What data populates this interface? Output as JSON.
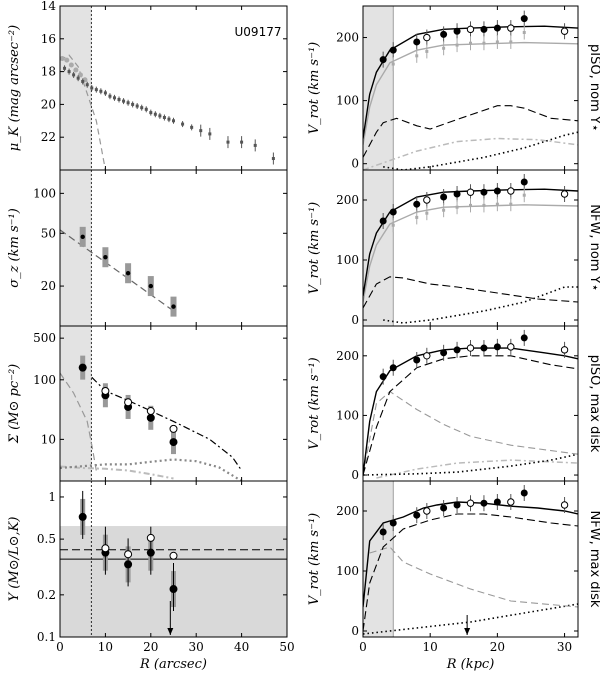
{
  "galaxy": "U09177",
  "chart_data": [
    {
      "id": "muK",
      "type": "scatter",
      "xlim": [
        0,
        50
      ],
      "ylim": [
        24,
        14
      ],
      "yticks": [
        14,
        16,
        18,
        20,
        22
      ],
      "ylabel": "μ_K (mag arcsec⁻²)",
      "shade_x": [
        0,
        7
      ],
      "vline": 6.9,
      "points": [
        [
          1,
          17.8
        ],
        [
          2,
          18.0
        ],
        [
          3,
          18.2
        ],
        [
          4,
          18.4
        ],
        [
          5,
          18.6
        ],
        [
          6,
          18.8
        ],
        [
          7,
          19.0
        ],
        [
          8,
          19.1
        ],
        [
          9,
          19.2
        ],
        [
          10,
          19.3
        ],
        [
          11,
          19.5
        ],
        [
          12,
          19.6
        ],
        [
          13,
          19.7
        ],
        [
          14,
          19.8
        ],
        [
          15,
          19.9
        ],
        [
          16,
          20.0
        ],
        [
          17,
          20.1
        ],
        [
          18,
          20.2
        ],
        [
          19,
          20.3
        ],
        [
          20,
          20.5
        ],
        [
          21,
          20.6
        ],
        [
          22,
          20.7
        ],
        [
          23,
          20.8
        ],
        [
          24,
          20.9
        ],
        [
          25,
          21.0
        ],
        [
          27,
          21.2
        ],
        [
          29,
          21.4
        ],
        [
          31,
          21.6
        ],
        [
          33,
          21.8
        ],
        [
          37,
          22.3
        ],
        [
          40,
          22.3
        ],
        [
          43,
          22.5
        ],
        [
          47,
          23.3
        ]
      ],
      "gray_points": [
        [
          0.5,
          17.2
        ],
        [
          1.5,
          17.3
        ],
        [
          2.5,
          17.6
        ],
        [
          3.5,
          17.9
        ],
        [
          4.5,
          18.2
        ],
        [
          5.5,
          18.5
        ]
      ],
      "dashed_line": [
        [
          0,
          17.3
        ],
        [
          2,
          17.0
        ],
        [
          4,
          17.7
        ],
        [
          8,
          21
        ],
        [
          10,
          24
        ]
      ]
    },
    {
      "id": "sigma",
      "type": "scatter",
      "ylog": true,
      "ylim": [
        10,
        150
      ],
      "yticks": [
        20,
        50,
        100
      ],
      "ylabel": "σ_z (km s⁻¹)",
      "shade_x": [
        0,
        7
      ],
      "vline": 6.9,
      "points": [
        [
          5,
          47
        ],
        [
          10,
          33
        ],
        [
          15,
          25
        ],
        [
          20,
          20
        ],
        [
          25,
          14
        ]
      ],
      "dashed_line": [
        [
          0,
          53
        ],
        [
          25,
          13
        ]
      ]
    },
    {
      "id": "Sigma",
      "type": "scatter",
      "ylog": true,
      "ylim": [
        2,
        800
      ],
      "yticks": [
        10,
        100,
        500
      ],
      "ylabel": "Σ (M⊙ pc⁻²)",
      "shade_x": [
        0,
        7
      ],
      "vline": 6.9,
      "filled": [
        [
          5,
          160
        ],
        [
          10,
          55
        ],
        [
          15,
          35
        ],
        [
          20,
          23
        ],
        [
          25,
          9
        ]
      ],
      "open": [
        [
          10,
          65
        ],
        [
          15,
          42
        ],
        [
          20,
          30
        ],
        [
          25,
          15
        ]
      ],
      "black_dashed": [
        [
          7,
          110
        ],
        [
          10,
          65
        ],
        [
          15,
          45
        ],
        [
          20,
          30
        ],
        [
          25,
          20
        ],
        [
          33,
          10
        ],
        [
          38,
          5
        ],
        [
          40,
          3
        ]
      ],
      "gray_dashed": [
        [
          0,
          130
        ],
        [
          3,
          60
        ],
        [
          6,
          20
        ],
        [
          7,
          8
        ],
        [
          8,
          3
        ]
      ],
      "gray_dashdot": [
        [
          0,
          3.3
        ],
        [
          10,
          3.8
        ],
        [
          15,
          3.8
        ],
        [
          20,
          4.2
        ],
        [
          25,
          4.6
        ],
        [
          30,
          4.3
        ],
        [
          35,
          3.4
        ],
        [
          40,
          2
        ]
      ],
      "light_dashdot": [
        [
          0,
          3.5
        ],
        [
          5,
          3.3
        ],
        [
          10,
          3.2
        ],
        [
          15,
          3
        ],
        [
          20,
          2.6
        ],
        [
          25,
          2.2
        ]
      ]
    },
    {
      "id": "upsilon",
      "type": "scatter",
      "ylog": true,
      "ylim": [
        0.1,
        1.3
      ],
      "yticks": [
        0.1,
        0.2,
        0.5,
        1
      ],
      "ylabel": "Υ (M⊙/L⊙,K)",
      "xlabel": "R (arcsec)",
      "xticks": [
        0,
        10,
        20,
        30,
        40,
        50
      ],
      "shade_y": [
        0.1,
        0.62
      ],
      "hline_solid": 0.36,
      "hline_dashed": 0.42,
      "vline": 6.9,
      "filled": [
        [
          5,
          0.72
        ],
        [
          10,
          0.4
        ],
        [
          15,
          0.33
        ],
        [
          20,
          0.4
        ],
        [
          25,
          0.22
        ]
      ],
      "open": [
        [
          10,
          0.43
        ],
        [
          15,
          0.39
        ],
        [
          20,
          0.51
        ],
        [
          25,
          0.38
        ]
      ],
      "arrow_x": 24.3
    },
    {
      "id": "rc1",
      "side_label": "pISO, nom Υ⋆",
      "ylim": [
        -10,
        250
      ],
      "yticks": [
        0,
        100,
        200
      ],
      "shade_x": [
        0,
        4.5
      ],
      "obs": [
        [
          3,
          165
        ],
        [
          4.5,
          180
        ],
        [
          8,
          193
        ],
        [
          9.5,
          200
        ],
        [
          12,
          205
        ],
        [
          14,
          210
        ],
        [
          16,
          213
        ],
        [
          18,
          213
        ],
        [
          20,
          215
        ],
        [
          22,
          215
        ],
        [
          24,
          230
        ],
        [
          30,
          210
        ]
      ],
      "total": [
        [
          0,
          40
        ],
        [
          1,
          110
        ],
        [
          2,
          145
        ],
        [
          4,
          180
        ],
        [
          8,
          205
        ],
        [
          12,
          213
        ],
        [
          16,
          215
        ],
        [
          22,
          217
        ],
        [
          27,
          218
        ],
        [
          32,
          215
        ]
      ],
      "gas": [
        [
          0,
          0
        ],
        [
          3,
          15
        ],
        [
          8,
          35
        ],
        [
          12,
          70
        ],
        [
          14,
          85
        ],
        [
          22,
          90
        ],
        [
          24,
          85
        ],
        [
          28,
          60
        ],
        [
          32,
          50
        ]
      ],
      "disk_dashed": [
        [
          0,
          10
        ],
        [
          2,
          50
        ],
        [
          3,
          65
        ],
        [
          5,
          72
        ],
        [
          8,
          60
        ],
        [
          10,
          55
        ],
        [
          14,
          70
        ],
        [
          20,
          92
        ],
        [
          22,
          92
        ],
        [
          24,
          88
        ],
        [
          28,
          72
        ],
        [
          32,
          68
        ]
      ],
      "halo_dotted": [
        [
          3,
          -5
        ],
        [
          6,
          -10
        ],
        [
          10,
          -5
        ],
        [
          18,
          10
        ],
        [
          24,
          25
        ],
        [
          30,
          45
        ],
        [
          32,
          50
        ]
      ],
      "light_dashdot": [
        [
          0,
          -10
        ],
        [
          4,
          5
        ],
        [
          8,
          20
        ],
        [
          14,
          35
        ],
        [
          20,
          40
        ],
        [
          26,
          38
        ],
        [
          32,
          30
        ]
      ]
    },
    {
      "id": "rc2",
      "side_label": "NFW, nom Υ⋆",
      "ylim": [
        -10,
        250
      ],
      "yticks": [
        0,
        100,
        200
      ],
      "shade_x": [
        0,
        4.5
      ],
      "total": [
        [
          0,
          40
        ],
        [
          1,
          110
        ],
        [
          2,
          145
        ],
        [
          4,
          180
        ],
        [
          8,
          205
        ],
        [
          12,
          213
        ],
        [
          16,
          215
        ],
        [
          22,
          217
        ],
        [
          27,
          218
        ],
        [
          32,
          215
        ]
      ],
      "gas": [
        [
          0,
          0
        ],
        [
          4,
          30
        ],
        [
          8,
          65
        ],
        [
          12,
          80
        ],
        [
          14,
          85
        ],
        [
          22,
          85
        ],
        [
          28,
          80
        ],
        [
          32,
          75
        ]
      ],
      "disk_dashed": [
        [
          0,
          20
        ],
        [
          2,
          60
        ],
        [
          4,
          72
        ],
        [
          6,
          70
        ],
        [
          10,
          60
        ],
        [
          14,
          55
        ],
        [
          20,
          45
        ],
        [
          26,
          35
        ],
        [
          32,
          30
        ]
      ],
      "halo_dotted": [
        [
          3,
          0
        ],
        [
          6,
          -5
        ],
        [
          10,
          0
        ],
        [
          18,
          15
        ],
        [
          24,
          30
        ],
        [
          30,
          55
        ],
        [
          32,
          55
        ]
      ]
    },
    {
      "id": "rc3",
      "side_label": "pISO, max disk",
      "ylim": [
        -10,
        250
      ],
      "yticks": [
        0,
        100,
        200
      ],
      "total": [
        [
          0,
          0
        ],
        [
          1,
          90
        ],
        [
          2,
          140
        ],
        [
          4,
          175
        ],
        [
          8,
          200
        ],
        [
          12,
          210
        ],
        [
          16,
          213
        ],
        [
          22,
          213
        ],
        [
          27,
          205
        ],
        [
          30,
          200
        ],
        [
          32,
          195
        ]
      ],
      "disk_dashed": [
        [
          0,
          0
        ],
        [
          2,
          80
        ],
        [
          4,
          140
        ],
        [
          8,
          180
        ],
        [
          12,
          195
        ],
        [
          16,
          200
        ],
        [
          22,
          200
        ],
        [
          28,
          185
        ],
        [
          32,
          178
        ]
      ],
      "gas_dashed": [
        [
          0,
          0
        ],
        [
          2,
          120
        ],
        [
          4,
          140
        ],
        [
          8,
          110
        ],
        [
          12,
          85
        ],
        [
          16,
          65
        ],
        [
          22,
          50
        ],
        [
          32,
          35
        ]
      ],
      "halo_dotted": [
        [
          0,
          0
        ],
        [
          8,
          2
        ],
        [
          14,
          5
        ],
        [
          22,
          15
        ],
        [
          28,
          25
        ],
        [
          32,
          35
        ]
      ],
      "light_dashdot": [
        [
          2,
          -5
        ],
        [
          8,
          10
        ],
        [
          14,
          20
        ],
        [
          22,
          25
        ],
        [
          32,
          20
        ]
      ]
    },
    {
      "id": "rc4",
      "side_label": "NFW, max disk",
      "ylim": [
        -10,
        250
      ],
      "yticks": [
        0,
        100,
        200
      ],
      "shade_x": [
        0,
        4.5
      ],
      "xlabel": "R (kpc)",
      "xticks": [
        0,
        10,
        20,
        30
      ],
      "arrow_x": 15.5,
      "total": [
        [
          0,
          40
        ],
        [
          1,
          150
        ],
        [
          3,
          180
        ],
        [
          6,
          190
        ],
        [
          9,
          205
        ],
        [
          11,
          210
        ],
        [
          14,
          215
        ],
        [
          18,
          213
        ],
        [
          22,
          208
        ],
        [
          26,
          205
        ],
        [
          30,
          200
        ],
        [
          32,
          195
        ]
      ],
      "disk_dashed": [
        [
          0,
          0
        ],
        [
          1,
          80
        ],
        [
          3,
          140
        ],
        [
          6,
          170
        ],
        [
          10,
          185
        ],
        [
          14,
          195
        ],
        [
          18,
          195
        ],
        [
          22,
          190
        ],
        [
          28,
          180
        ],
        [
          32,
          175
        ]
      ],
      "gas_dashed": [
        [
          1,
          130
        ],
        [
          4,
          140
        ],
        [
          6,
          115
        ],
        [
          10,
          95
        ],
        [
          16,
          70
        ],
        [
          22,
          50
        ],
        [
          32,
          40
        ]
      ],
      "halo_dotted": [
        [
          0,
          -5
        ],
        [
          8,
          5
        ],
        [
          16,
          15
        ],
        [
          24,
          30
        ],
        [
          32,
          45
        ]
      ]
    }
  ],
  "labels": {
    "ax1_ylabel": "μ_K (mag arcsec⁻²)",
    "ax2_ylabel": "σ_z (km s⁻¹)",
    "ax3_ylabel": "Σ (M⊙ pc⁻²)",
    "ax4_ylabel": "Υ (M⊙/L⊙,K)",
    "left_xlabel": "R (arcsec)",
    "right_xlabel": "R (kpc)",
    "vrot_ylabel": "V_rot (km s⁻¹)",
    "rc1": "pISO, nom Υ⋆",
    "rc2": "NFW, nom Υ⋆",
    "rc3": "pISO, max disk",
    "rc4": "NFW, max disk"
  }
}
